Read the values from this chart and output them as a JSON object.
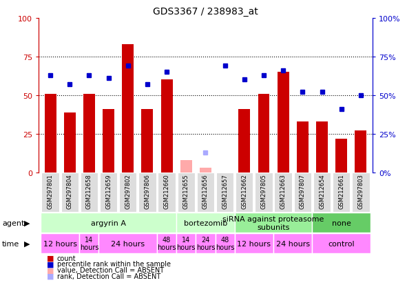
{
  "title": "GDS3367 / 238983_at",
  "samples": [
    "GSM297801",
    "GSM297804",
    "GSM212658",
    "GSM212659",
    "GSM297802",
    "GSM297806",
    "GSM212660",
    "GSM212655",
    "GSM212656",
    "GSM212657",
    "GSM212662",
    "GSM297805",
    "GSM212663",
    "GSM297807",
    "GSM212654",
    "GSM212661",
    "GSM297803"
  ],
  "count_values": [
    51,
    39,
    51,
    41,
    83,
    41,
    60,
    null,
    null,
    null,
    41,
    51,
    65,
    33,
    33,
    22,
    27
  ],
  "count_absent": [
    null,
    null,
    null,
    null,
    null,
    null,
    null,
    8,
    3,
    null,
    null,
    null,
    null,
    null,
    null,
    null,
    null
  ],
  "rank_values": [
    63,
    57,
    63,
    61,
    69,
    57,
    65,
    null,
    null,
    69,
    60,
    63,
    66,
    52,
    52,
    41,
    50
  ],
  "rank_absent": [
    null,
    null,
    null,
    null,
    null,
    null,
    null,
    null,
    13,
    null,
    null,
    null,
    null,
    null,
    null,
    null,
    null
  ],
  "bar_color": "#cc0000",
  "bar_absent_color": "#ffaaaa",
  "rank_color": "#0000cc",
  "rank_absent_color": "#aaaaff",
  "ylim": [
    0,
    100
  ],
  "yticks": [
    0,
    25,
    50,
    75,
    100
  ],
  "agent_groups": [
    {
      "label": "argyrin A",
      "start": 0,
      "end": 7,
      "color": "#ccffcc"
    },
    {
      "label": "bortezomib",
      "start": 7,
      "end": 10,
      "color": "#ccffcc"
    },
    {
      "label": "siRNA against proteasome\nsubunits",
      "start": 10,
      "end": 14,
      "color": "#99ee99"
    },
    {
      "label": "none",
      "start": 14,
      "end": 17,
      "color": "#66cc66"
    }
  ],
  "time_groups": [
    {
      "label": "12 hours",
      "start": 0,
      "end": 2,
      "color": "#ff88ff",
      "fontsize": 8
    },
    {
      "label": "14\nhours",
      "start": 2,
      "end": 3,
      "color": "#ff88ff",
      "fontsize": 7
    },
    {
      "label": "24 hours",
      "start": 3,
      "end": 6,
      "color": "#ff88ff",
      "fontsize": 8
    },
    {
      "label": "48\nhours",
      "start": 6,
      "end": 7,
      "color": "#ff88ff",
      "fontsize": 7
    },
    {
      "label": "14\nhours",
      "start": 7,
      "end": 8,
      "color": "#ff88ff",
      "fontsize": 7
    },
    {
      "label": "24\nhours",
      "start": 8,
      "end": 9,
      "color": "#ff88ff",
      "fontsize": 7
    },
    {
      "label": "48\nhours",
      "start": 9,
      "end": 10,
      "color": "#ff88ff",
      "fontsize": 7
    },
    {
      "label": "12 hours",
      "start": 10,
      "end": 12,
      "color": "#ff88ff",
      "fontsize": 8
    },
    {
      "label": "24 hours",
      "start": 12,
      "end": 14,
      "color": "#ff88ff",
      "fontsize": 8
    },
    {
      "label": "control",
      "start": 14,
      "end": 17,
      "color": "#ff88ff",
      "fontsize": 8
    }
  ],
  "bg_color": "#ffffff",
  "axis_color_left": "#cc0000",
  "axis_color_right": "#0000cc",
  "sample_box_color": "#dddddd",
  "legend_items": [
    {
      "color": "#cc0000",
      "label": "count"
    },
    {
      "color": "#0000cc",
      "label": "percentile rank within the sample"
    },
    {
      "color": "#ffaaaa",
      "label": "value, Detection Call = ABSENT"
    },
    {
      "color": "#aaaaff",
      "label": "rank, Detection Call = ABSENT"
    }
  ]
}
